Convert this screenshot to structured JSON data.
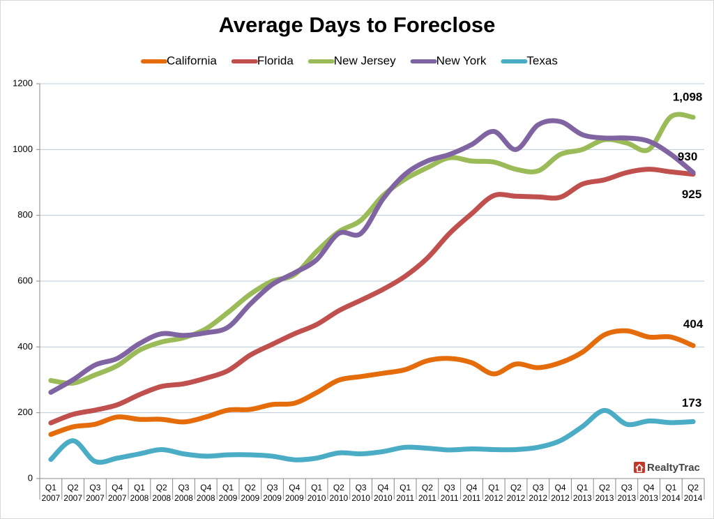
{
  "chart_data": {
    "type": "line",
    "title": "Average Days to Foreclose",
    "categories": [
      "Q1\n2007",
      "Q2\n2007",
      "Q3\n2007",
      "Q4\n2007",
      "Q1\n2008",
      "Q2\n2008",
      "Q3\n2008",
      "Q4\n2008",
      "Q1\n2009",
      "Q2\n2009",
      "Q3\n2009",
      "Q4\n2009",
      "Q1\n2010",
      "Q2\n2010",
      "Q3\n2010",
      "Q4\n2010",
      "Q1\n2011",
      "Q2\n2011",
      "Q3\n2011",
      "Q4\n2011",
      "Q1\n2012",
      "Q2\n2012",
      "Q3\n2012",
      "Q4\n2012",
      "Q1\n2013",
      "Q2\n2013",
      "Q3\n2013",
      "Q4\n2013",
      "Q1\n2014",
      "Q2\n2014"
    ],
    "series": [
      {
        "name": "California",
        "color": "#e46c0a",
        "values": [
          134,
          157,
          165,
          187,
          180,
          180,
          172,
          187,
          208,
          210,
          225,
          229,
          261,
          299,
          310,
          320,
          331,
          358,
          365,
          352,
          318,
          348,
          337,
          352,
          384,
          437,
          449,
          430,
          430,
          404
        ],
        "value_labels": [
          null,
          null,
          null,
          null,
          null,
          null,
          null,
          null,
          null,
          null,
          null,
          null,
          null,
          null,
          null,
          null,
          null,
          null,
          null,
          null,
          null,
          null,
          null,
          null,
          null,
          null,
          null,
          null,
          null,
          "404"
        ]
      },
      {
        "name": "Florida",
        "color": "#c0504d",
        "values": [
          169,
          195,
          208,
          224,
          255,
          280,
          288,
          305,
          328,
          375,
          408,
          440,
          468,
          510,
          542,
          575,
          615,
          670,
          745,
          805,
          860,
          858,
          856,
          855,
          895,
          908,
          930,
          940,
          932,
          925
        ],
        "value_labels": [
          null,
          null,
          null,
          null,
          null,
          null,
          null,
          null,
          null,
          null,
          null,
          null,
          null,
          null,
          null,
          null,
          null,
          null,
          null,
          null,
          null,
          null,
          null,
          null,
          null,
          null,
          null,
          null,
          null,
          "925"
        ]
      },
      {
        "name": "New Jersey",
        "color": "#9bbb59",
        "values": [
          298,
          290,
          315,
          343,
          390,
          415,
          428,
          455,
          505,
          560,
          600,
          620,
          690,
          750,
          785,
          860,
          910,
          945,
          975,
          965,
          962,
          940,
          935,
          985,
          1000,
          1030,
          1020,
          1000,
          1100,
          1098
        ],
        "value_labels": [
          null,
          null,
          null,
          null,
          null,
          null,
          null,
          null,
          null,
          null,
          null,
          null,
          null,
          null,
          null,
          null,
          null,
          null,
          null,
          null,
          null,
          null,
          null,
          null,
          null,
          null,
          null,
          null,
          null,
          "1,098"
        ]
      },
      {
        "name": "New York",
        "color": "#8064a2",
        "values": [
          262,
          300,
          345,
          365,
          410,
          440,
          435,
          443,
          460,
          530,
          590,
          625,
          665,
          745,
          745,
          850,
          925,
          965,
          985,
          1015,
          1055,
          1000,
          1075,
          1085,
          1045,
          1035,
          1035,
          1025,
          985,
          930
        ],
        "value_labels": [
          null,
          null,
          null,
          null,
          null,
          null,
          null,
          null,
          null,
          null,
          null,
          null,
          null,
          null,
          null,
          null,
          null,
          null,
          null,
          null,
          null,
          null,
          null,
          null,
          null,
          null,
          null,
          null,
          null,
          "930"
        ]
      },
      {
        "name": "Texas",
        "color": "#4bacc6",
        "values": [
          58,
          115,
          52,
          62,
          75,
          88,
          75,
          68,
          72,
          72,
          68,
          57,
          62,
          78,
          75,
          82,
          95,
          92,
          87,
          90,
          88,
          88,
          95,
          115,
          158,
          207,
          165,
          175,
          170,
          173
        ],
        "value_labels": [
          null,
          null,
          null,
          null,
          null,
          null,
          null,
          null,
          null,
          null,
          null,
          null,
          null,
          null,
          null,
          null,
          null,
          null,
          null,
          null,
          null,
          null,
          null,
          null,
          null,
          null,
          null,
          null,
          null,
          "173"
        ]
      }
    ],
    "ylim": [
      0,
      1200
    ],
    "yticks": [
      0,
      200,
      400,
      600,
      800,
      1000,
      1200
    ],
    "grid": true,
    "legend": "top",
    "logo": "RealtyTrac"
  }
}
